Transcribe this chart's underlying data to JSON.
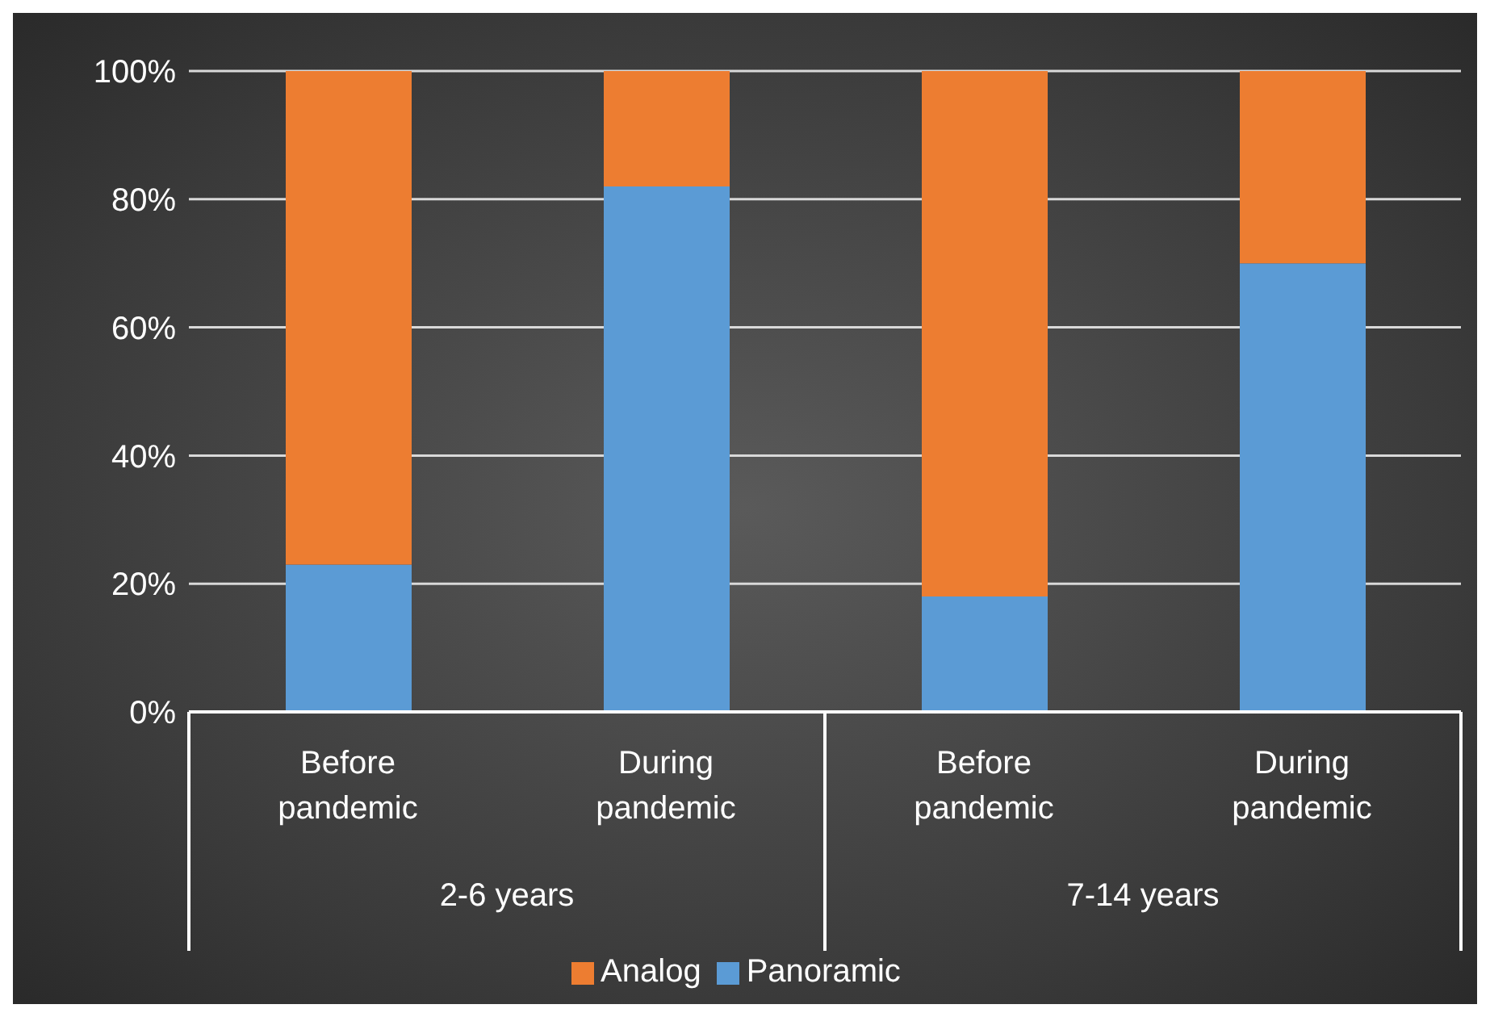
{
  "chart_data": {
    "type": "bar",
    "stacked": true,
    "categories": [
      "Before pandemic",
      "During pandemic",
      "Before pandemic",
      "During pandemic"
    ],
    "series": [
      {
        "name": "Panoramic",
        "color": "#5b9bd5",
        "values": [
          23,
          82,
          18,
          70
        ]
      },
      {
        "name": "Analog",
        "color": "#ed7d31",
        "values": [
          77,
          18,
          82,
          30
        ]
      }
    ],
    "ylim": [
      0,
      100
    ],
    "yticks": [
      {
        "value": 0,
        "label": "0%"
      },
      {
        "value": 20,
        "label": "20%"
      },
      {
        "value": 40,
        "label": "40%"
      },
      {
        "value": 60,
        "label": "60%"
      },
      {
        "value": 80,
        "label": "80%"
      },
      {
        "value": 100,
        "label": "100%"
      }
    ],
    "grid": "y",
    "legend": "bottom",
    "annotations": [
      "2-6 years",
      "7-14 years"
    ]
  }
}
